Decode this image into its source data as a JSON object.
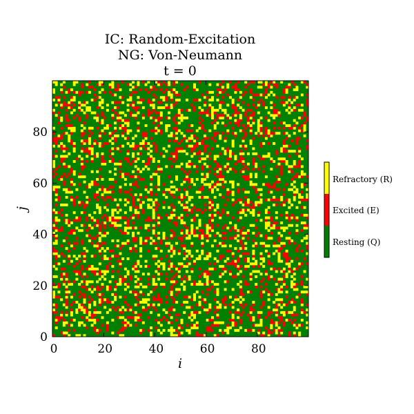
{
  "chart_data": {
    "type": "heatmap",
    "title_lines": [
      "IC: Random-Excitation",
      "NG: Von-Neumann",
      "t = 0"
    ],
    "xlabel": "i",
    "ylabel": "j",
    "xlim": [
      0,
      99
    ],
    "ylim": [
      0,
      99
    ],
    "grid_size": [
      100,
      100
    ],
    "x_ticks": [
      {
        "value": 0,
        "label": "0"
      },
      {
        "value": 20,
        "label": "20"
      },
      {
        "value": 40,
        "label": "40"
      },
      {
        "value": 60,
        "label": "60"
      },
      {
        "value": 80,
        "label": "80"
      }
    ],
    "y_ticks": [
      {
        "value": 0,
        "label": "0"
      },
      {
        "value": 20,
        "label": "20"
      },
      {
        "value": 40,
        "label": "40"
      },
      {
        "value": 60,
        "label": "60"
      },
      {
        "value": 80,
        "label": "80"
      }
    ],
    "states": [
      {
        "name": "Resting (Q)",
        "value": 0,
        "color": "#008000"
      },
      {
        "name": "Excited (E)",
        "value": 1,
        "color": "#ff0000"
      },
      {
        "name": "Refractory (R)",
        "value": 2,
        "color": "#ffff00"
      }
    ],
    "approx_fractions": {
      "resting": 0.68,
      "excited": 0.16,
      "refractory": 0.16
    },
    "colorbar": {
      "labels": [
        "Refractory (R)",
        "Excited (E)",
        "Resting (Q)"
      ]
    }
  }
}
